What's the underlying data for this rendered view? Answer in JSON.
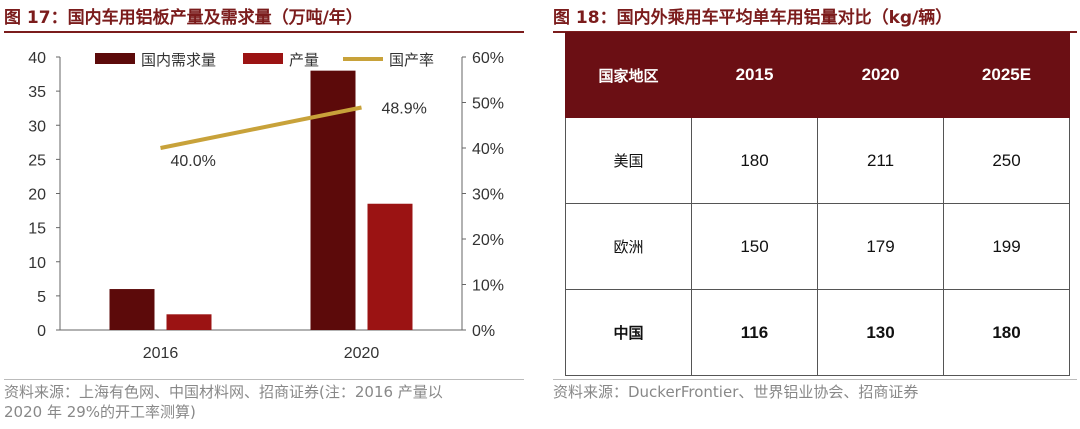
{
  "left_panel": {
    "title": "图 17：国内车用铝板产量及需求量（万吨/年）",
    "source_line1": "资料来源：上海有色网、中国材料网、招商证券(注：2016 产量以",
    "source_line2": "2020 年 29%的开工率测算)"
  },
  "right_panel": {
    "title": "图 18：国内外乘用车平均单车用铝量对比（kg/辆）",
    "source": "资料来源：DuckerFrontier、世界铝业协会、招商证券",
    "table": {
      "headers": [
        "国家地区",
        "2015",
        "2020",
        "2025E"
      ],
      "rows": [
        {
          "region": "美国",
          "v2015": "180",
          "v2020": "211",
          "v2025": "250"
        },
        {
          "region": "欧洲",
          "v2015": "150",
          "v2020": "179",
          "v2025": "199"
        },
        {
          "region": "中国",
          "v2015": "116",
          "v2020": "130",
          "v2025": "180"
        }
      ]
    }
  },
  "chart_data": [
    {
      "type": "bar",
      "title": "图 17：国内车用铝板产量及需求量（万吨/年）",
      "categories": [
        "2016",
        "2020"
      ],
      "series": [
        {
          "name": "国内需求量",
          "type": "bar",
          "axis": "left",
          "color": "#5c0a0a",
          "values": [
            6,
            38
          ]
        },
        {
          "name": "产量",
          "type": "bar",
          "axis": "left",
          "color": "#9b1313",
          "values": [
            2.3,
            18.5
          ]
        },
        {
          "name": "国产率",
          "type": "line",
          "axis": "right",
          "color": "#c8a23a",
          "values": [
            40.0,
            48.9
          ],
          "labels": [
            "40.0%",
            "48.9%"
          ]
        }
      ],
      "ylim": [
        0,
        40
      ],
      "yticks": [
        "0",
        "5",
        "10",
        "15",
        "20",
        "25",
        "30",
        "35",
        "40"
      ],
      "y2lim": [
        0,
        60
      ],
      "y2ticks": [
        "0%",
        "10%",
        "20%",
        "30%",
        "40%",
        "50%",
        "60%"
      ],
      "legend": "top",
      "grid": false
    },
    {
      "type": "table",
      "title": "图 18：国内外乘用车平均单车用铝量对比（kg/辆）",
      "columns": [
        "国家地区",
        "2015",
        "2020",
        "2025E"
      ],
      "rows": [
        [
          "美国",
          "180",
          "211",
          "250"
        ],
        [
          "欧洲",
          "150",
          "179",
          "199"
        ],
        [
          "中国",
          "116",
          "130",
          "180"
        ]
      ]
    }
  ]
}
